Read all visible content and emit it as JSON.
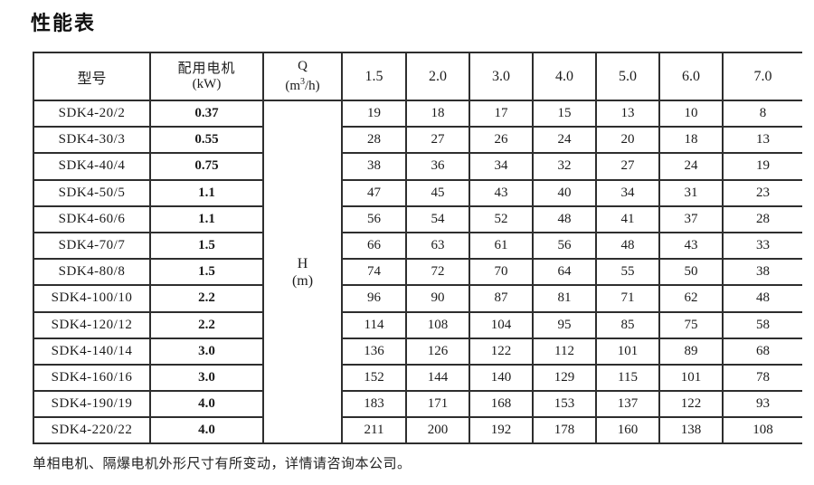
{
  "title": "性能表",
  "footer": "单相电机、隔爆电机外形尺寸有所变动，详情请咨询本公司。",
  "table": {
    "header": {
      "model": "型号",
      "motor_line1": "配用电机",
      "motor_line2": "(kW)",
      "q_line1": "Q",
      "q_open": "(m",
      "q_sup": "3",
      "q_close": "/h)",
      "flow_values": [
        "1.5",
        "2.0",
        "3.0",
        "4.0",
        "5.0",
        "6.0",
        "7.0"
      ]
    },
    "h_cell": {
      "line1": "H",
      "line2": "(m)"
    },
    "rows": [
      {
        "model": "SDK4-20/2",
        "kw": "0.37",
        "h": [
          "19",
          "18",
          "17",
          "15",
          "13",
          "10",
          "8"
        ]
      },
      {
        "model": "SDK4-30/3",
        "kw": "0.55",
        "h": [
          "28",
          "27",
          "26",
          "24",
          "20",
          "18",
          "13"
        ]
      },
      {
        "model": "SDK4-40/4",
        "kw": "0.75",
        "h": [
          "38",
          "36",
          "34",
          "32",
          "27",
          "24",
          "19"
        ]
      },
      {
        "model": "SDK4-50/5",
        "kw": "1.1",
        "h": [
          "47",
          "45",
          "43",
          "40",
          "34",
          "31",
          "23"
        ]
      },
      {
        "model": "SDK4-60/6",
        "kw": "1.1",
        "h": [
          "56",
          "54",
          "52",
          "48",
          "41",
          "37",
          "28"
        ]
      },
      {
        "model": "SDK4-70/7",
        "kw": "1.5",
        "h": [
          "66",
          "63",
          "61",
          "56",
          "48",
          "43",
          "33"
        ]
      },
      {
        "model": "SDK4-80/8",
        "kw": "1.5",
        "h": [
          "74",
          "72",
          "70",
          "64",
          "55",
          "50",
          "38"
        ]
      },
      {
        "model": "SDK4-100/10",
        "kw": "2.2",
        "h": [
          "96",
          "90",
          "87",
          "81",
          "71",
          "62",
          "48"
        ]
      },
      {
        "model": "SDK4-120/12",
        "kw": "2.2",
        "h": [
          "114",
          "108",
          "104",
          "95",
          "85",
          "75",
          "58"
        ]
      },
      {
        "model": "SDK4-140/14",
        "kw": "3.0",
        "h": [
          "136",
          "126",
          "122",
          "112",
          "101",
          "89",
          "68"
        ]
      },
      {
        "model": "SDK4-160/16",
        "kw": "3.0",
        "h": [
          "152",
          "144",
          "140",
          "129",
          "115",
          "101",
          "78"
        ]
      },
      {
        "model": "SDK4-190/19",
        "kw": "4.0",
        "h": [
          "183",
          "171",
          "168",
          "153",
          "137",
          "122",
          "93"
        ]
      },
      {
        "model": "SDK4-220/22",
        "kw": "4.0",
        "h": [
          "211",
          "200",
          "192",
          "178",
          "160",
          "138",
          "108"
        ]
      }
    ]
  }
}
